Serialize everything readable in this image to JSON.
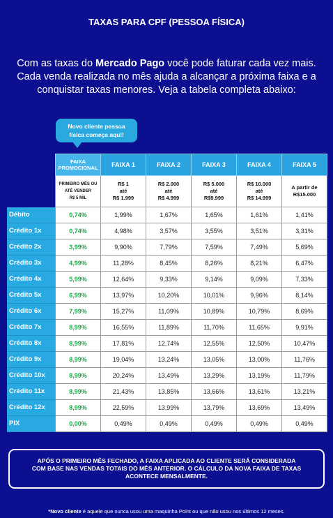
{
  "title": "TAXAS PARA CPF (PESSOA FÍSICA)",
  "intro": {
    "before": "Com as taxas do ",
    "bold": "Mercado Pago",
    "after": " você pode faturar cada vez mais. Cada venda realizada no mês ajuda a alcançar a próxima faixa e a conquistar taxas menores. Veja a tabela completa abaixo:"
  },
  "bubble": "Novo cliente pessoa física começa aqui!",
  "table": {
    "columns": [
      "FAIXA PROMOCIONAL",
      "FAIXA 1",
      "FAIXA 2",
      "FAIXA 3",
      "FAIXA 4",
      "FAIXA 5"
    ],
    "ranges": [
      [
        "PRIMEIRO MÊS OU",
        "ATÉ VENDER",
        "R$ 5 MIL"
      ],
      [
        "R$ 1",
        "até",
        "R$ 1.999"
      ],
      [
        "R$ 2.000",
        "até",
        "R$ 4.999"
      ],
      [
        "R$ 5.000",
        "até",
        "R$9.999"
      ],
      [
        "R$ 10.000",
        "até",
        "R$ 14.999"
      ],
      [
        "A partir de",
        "R$15.000"
      ]
    ],
    "rows": [
      [
        "Débito",
        "0,74%",
        "1,99%",
        "1,67%",
        "1,65%",
        "1,61%",
        "1,41%"
      ],
      [
        "Crédito 1x",
        "0,74%",
        "4,98%",
        "3,57%",
        "3,55%",
        "3,51%",
        "3,31%"
      ],
      [
        "Crédito 2x",
        "3,99%",
        "9,90%",
        "7,79%",
        "7,59%",
        "7,49%",
        "5,69%"
      ],
      [
        "Crédito 3x",
        "4,99%",
        "11,28%",
        "8,45%",
        "8,26%",
        "8,21%",
        "6,47%"
      ],
      [
        "Crédito 4x",
        "5,99%",
        "12,64%",
        "9,33%",
        "9,14%",
        "9,09%",
        "7,33%"
      ],
      [
        "Crédito 5x",
        "6,99%",
        "13,97%",
        "10,20%",
        "10,01%",
        "9,96%",
        "8,14%"
      ],
      [
        "Crédito 6x",
        "7,99%",
        "15,27%",
        "11,09%",
        "10,89%",
        "10,79%",
        "8,69%"
      ],
      [
        "Crédito 7x",
        "8,99%",
        "16,55%",
        "11,89%",
        "11,70%",
        "11,65%",
        "9,91%"
      ],
      [
        "Crédito 8x",
        "8,99%",
        "17,81%",
        "12,74%",
        "12,55%",
        "12,50%",
        "10,47%"
      ],
      [
        "Crédito 9x",
        "8,99%",
        "19,04%",
        "13,24%",
        "13,05%",
        "13,00%",
        "11,76%"
      ],
      [
        "Crédito 10x",
        "8,99%",
        "20,24%",
        "13,49%",
        "13,29%",
        "13,19%",
        "11,79%"
      ],
      [
        "Crédito 11x",
        "8,99%",
        "21,43%",
        "13,85%",
        "13,66%",
        "13,61%",
        "13,21%"
      ],
      [
        "Crédito 12x",
        "8,99%",
        "22,59%",
        "13,99%",
        "13,79%",
        "13,69%",
        "13,49%"
      ],
      [
        "PIX",
        "0,00%",
        "0,49%",
        "0,49%",
        "0,49%",
        "0,49%",
        "0,49%"
      ]
    ]
  },
  "note": "APÓS O PRIMEIRO MÊS FECHADO, A FAIXA APLICADA AO CLIENTE SERÁ CONSIDERADA COM BASE NAS VENDAS TOTAIS DO MÊS ANTERIOR. O CÁLCULO DA NOVA FAIXA DE TAXAS ACONTECE MENSALMENTE.",
  "footnote": {
    "bold": "*Novo cliente",
    "rest": " é aquele que nunca usou uma maquinha Point ou que não usou nos últimos 12 meses."
  }
}
